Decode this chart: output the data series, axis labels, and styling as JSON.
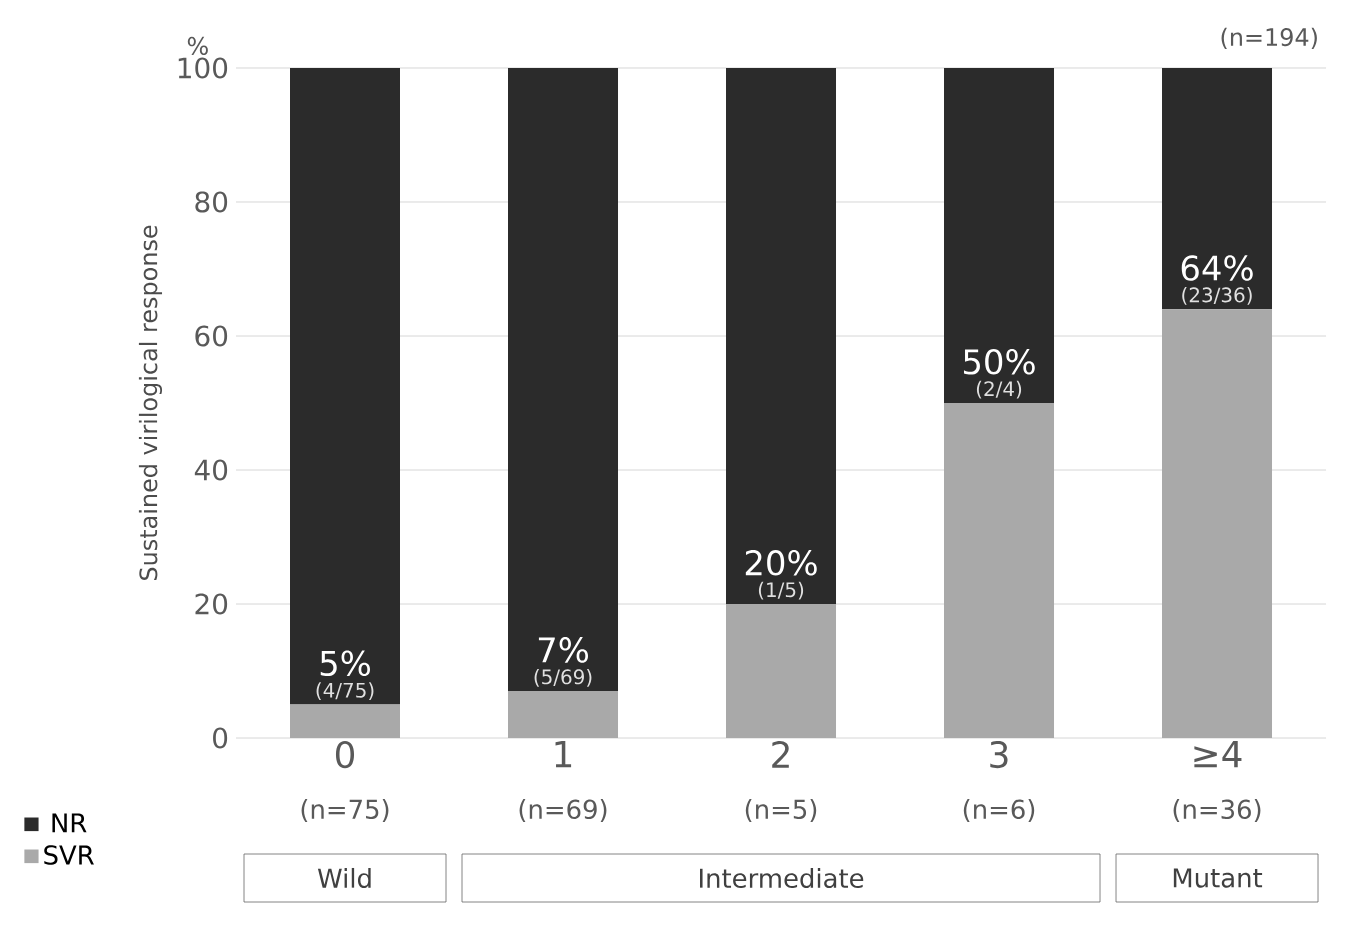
{
  "chart_data": {
    "type": "bar",
    "stacked": true,
    "ylabel": "Sustained virilogical response",
    "categories": [
      "0",
      "1",
      "2",
      "3",
      "≥4"
    ],
    "series": [
      {
        "name": "SVR",
        "color": "#a9a9a9",
        "values": [
          5,
          7,
          20,
          50,
          64
        ],
        "value_labels": [
          "5%",
          "7%",
          "20%",
          "50%",
          "64%"
        ]
      },
      {
        "name": "NR",
        "color": "#2b2b2b",
        "values": [
          95,
          93,
          80,
          50,
          36
        ]
      }
    ],
    "ylim": [
      0,
      100
    ],
    "yticks": [
      0,
      20,
      40,
      60,
      80,
      100
    ],
    "grid": "y",
    "legend": "bottom left",
    "annotations": [
      "(n=194)",
      "%",
      "Wild",
      "Intermediate",
      "Mutant",
      "(n=75)",
      "(n=69)",
      "(n=5)",
      "(n=6)",
      "(n=36)",
      {
        "text": "(4/75)",
        "x": "0",
        "y": 5
      },
      {
        "text": "(5/69)",
        "x": "1",
        "y": 7
      },
      {
        "text": "(1/5)",
        "x": "2",
        "y": 20
      },
      {
        "text": "(2/4)",
        "x": "3",
        "y": 50
      },
      {
        "text": "(23/36)",
        "x": "≥4",
        "y": 64
      }
    ]
  }
}
